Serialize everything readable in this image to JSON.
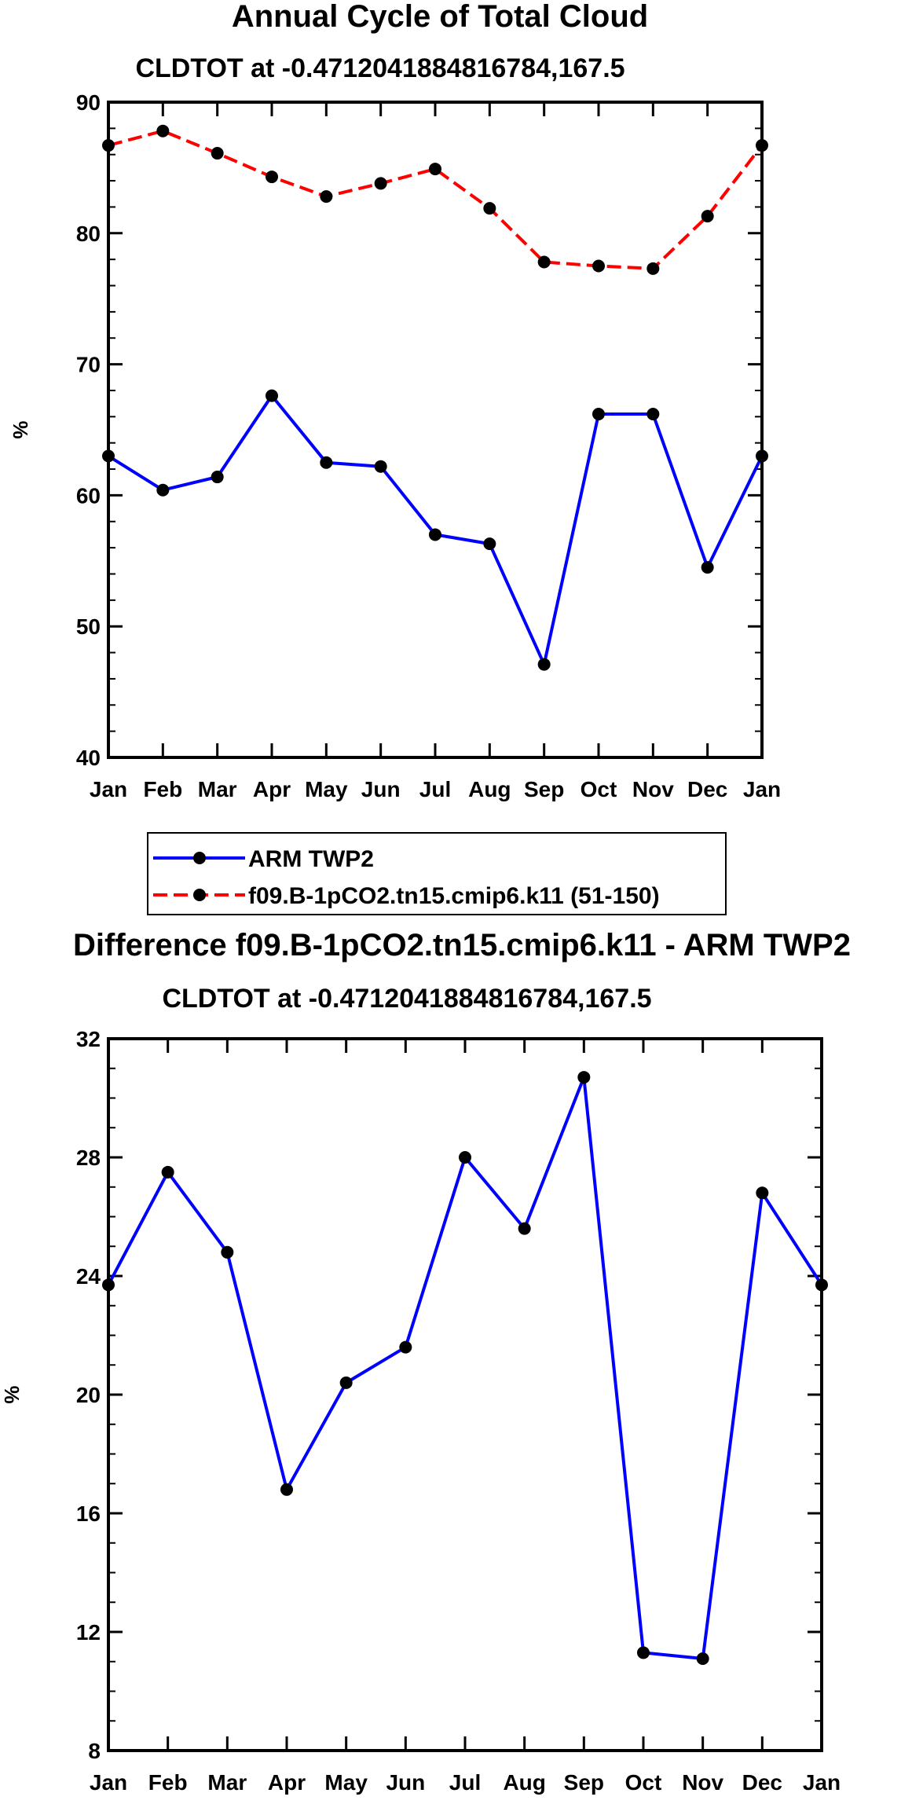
{
  "chart_data": [
    {
      "type": "line",
      "title": "Annual Cycle of Total Cloud",
      "subtitle": "CLDTOT at -0.4712041884816784,167.5",
      "ylabel": "%",
      "xlabel": "",
      "ylim": [
        40,
        90
      ],
      "yticks": [
        40,
        50,
        60,
        70,
        80,
        90
      ],
      "categories": [
        "Jan",
        "Feb",
        "Mar",
        "Apr",
        "May",
        "Jun",
        "Jul",
        "Aug",
        "Sep",
        "Oct",
        "Nov",
        "Dec",
        "Jan"
      ],
      "series": [
        {
          "name": "ARM TWP2",
          "color": "#0000ff",
          "dashed": false,
          "values": [
            63.0,
            60.4,
            61.4,
            67.6,
            62.5,
            62.2,
            57.0,
            56.3,
            47.1,
            66.2,
            66.2,
            54.5,
            63.0
          ]
        },
        {
          "name": "f09.B-1pCO2.tn15.cmip6.k11 (51-150)",
          "color": "#ff0000",
          "dashed": true,
          "values": [
            86.7,
            87.8,
            86.1,
            84.3,
            82.8,
            83.8,
            84.9,
            81.9,
            77.8,
            77.5,
            77.3,
            81.3,
            86.7
          ]
        }
      ],
      "legend": {
        "position": "bottom-center",
        "entries": [
          "ARM TWP2",
          "f09.B-1pCO2.tn15.cmip6.k11 (51-150)"
        ]
      }
    },
    {
      "type": "line",
      "title": "Difference f09.B-1pCO2.tn15.cmip6.k11 - ARM TWP2",
      "subtitle": "CLDTOT at -0.4712041884816784,167.5",
      "ylabel": "%",
      "xlabel": "",
      "ylim": [
        8,
        32
      ],
      "yticks": [
        8,
        12,
        16,
        20,
        24,
        28,
        32
      ],
      "categories": [
        "Jan",
        "Feb",
        "Mar",
        "Apr",
        "May",
        "Jun",
        "Jul",
        "Aug",
        "Sep",
        "Oct",
        "Nov",
        "Dec",
        "Jan"
      ],
      "series": [
        {
          "name": "Difference",
          "color": "#0000ff",
          "dashed": false,
          "values": [
            23.7,
            27.5,
            24.8,
            16.8,
            20.4,
            21.6,
            28.0,
            25.6,
            30.7,
            11.3,
            11.1,
            26.8,
            23.7
          ]
        }
      ]
    }
  ]
}
